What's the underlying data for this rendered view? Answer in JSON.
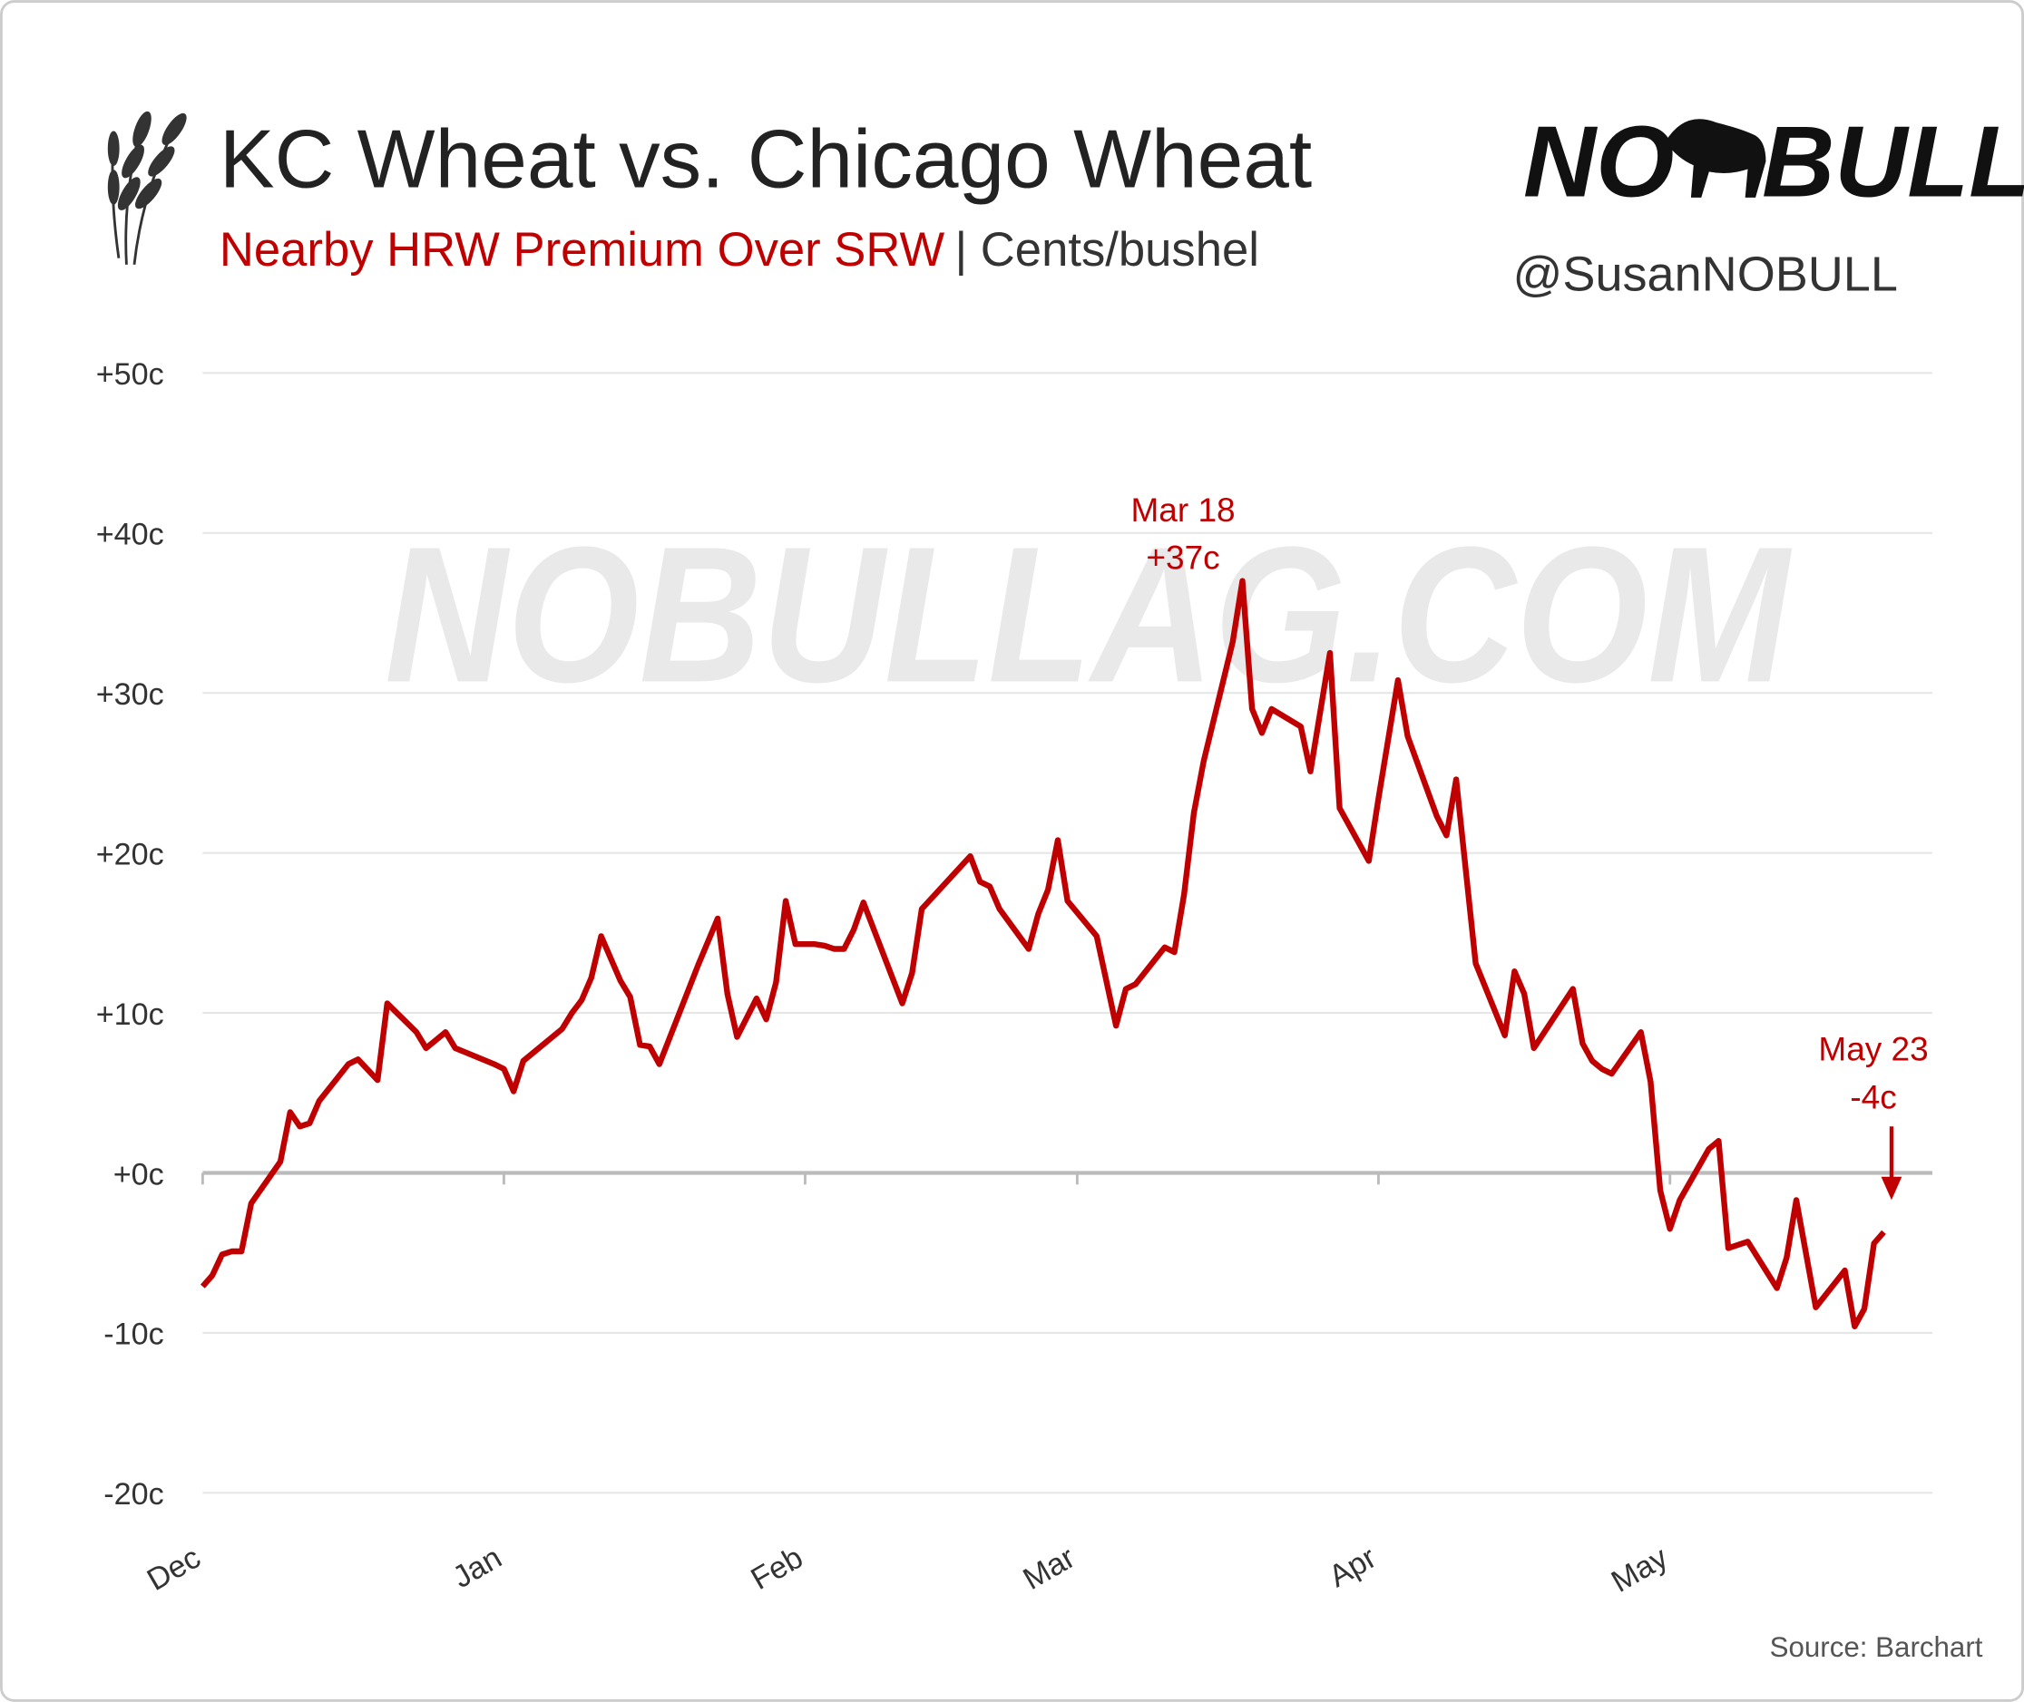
{
  "chart_data": {
    "type": "line",
    "title": "KC Wheat vs. Chicago Wheat",
    "subtitle": [
      "Nearby HRW Premium Over SRW",
      "| Cents/bushel"
    ],
    "logo": [
      "NO",
      "BULL"
    ],
    "handle": "@SusanNOBULL",
    "watermark": "NOBULLAG.COM",
    "source": "Source: Barchart",
    "annotations": [
      {
        "text": [
          "Mar 18",
          "+37c"
        ],
        "x": 107,
        "y": 37
      },
      {
        "text": [
          "May 23",
          "-4c"
        ],
        "x": 173,
        "y": -3.7
      }
    ],
    "color": "#c00000",
    "x": [
      0,
      1,
      2,
      3,
      4,
      5,
      8,
      9,
      10,
      11,
      12,
      15,
      16,
      18,
      19,
      22,
      23,
      25,
      26,
      30,
      31,
      32,
      33,
      37,
      38,
      39,
      40,
      41,
      43,
      44,
      45,
      46,
      47,
      51,
      53,
      54,
      55,
      57,
      58,
      59,
      60,
      61,
      63,
      64,
      65,
      66,
      67,
      68,
      72,
      73,
      74,
      79,
      80,
      81,
      82,
      85,
      86,
      87,
      88,
      89,
      92,
      94,
      95,
      96,
      99,
      100,
      101,
      102,
      103,
      106,
      107,
      108,
      109,
      110,
      113,
      114,
      116,
      117,
      120,
      121,
      123,
      124,
      127,
      128,
      129,
      131,
      134,
      135,
      136,
      137,
      141,
      142,
      143,
      144,
      145,
      148,
      149,
      150,
      151,
      152,
      155,
      156,
      157,
      159,
      162,
      163,
      164,
      166,
      169,
      170,
      171,
      172,
      173
    ],
    "values": [
      -7.1,
      -6.4,
      -5.1,
      -4.9,
      -4.9,
      -1.9,
      0.7,
      3.8,
      2.9,
      3.1,
      4.5,
      6.8,
      7.1,
      5.8,
      10.6,
      8.8,
      7.8,
      8.8,
      7.8,
      6.8,
      6.5,
      5.1,
      7.0,
      9.0,
      10.0,
      10.8,
      12.2,
      14.8,
      12.0,
      11.0,
      8.0,
      7.9,
      6.8,
      13.0,
      15.9,
      11.2,
      8.5,
      10.9,
      9.6,
      11.9,
      17.0,
      14.3,
      14.3,
      14.2,
      14.0,
      14.0,
      15.2,
      16.9,
      10.6,
      12.5,
      16.5,
      19.8,
      18.2,
      17.9,
      16.5,
      14.0,
      16.2,
      17.7,
      20.8,
      17.0,
      14.8,
      9.2,
      11.5,
      11.8,
      14.1,
      13.8,
      17.4,
      22.5,
      25.7,
      33.2,
      37.0,
      29.0,
      27.5,
      29.0,
      27.9,
      25.1,
      32.5,
      22.8,
      19.5,
      23.4,
      30.8,
      27.3,
      22.3,
      21.1,
      24.6,
      13.1,
      8.6,
      12.6,
      11.2,
      7.8,
      11.5,
      8.1,
      7.0,
      6.5,
      6.2,
      8.8,
      5.7,
      -1.1,
      -3.5,
      -1.7,
      1.5,
      2.0,
      -4.7,
      -4.3,
      -7.2,
      -5.3,
      -1.7,
      -8.4,
      -6.1,
      -9.6,
      -8.5,
      -4.4,
      -3.7
    ],
    "xlim": [
      0,
      178
    ],
    "xticks": [
      {
        "value": 0,
        "label": "Dec"
      },
      {
        "value": 31,
        "label": "Jan"
      },
      {
        "value": 62,
        "label": "Feb"
      },
      {
        "value": 90,
        "label": "Mar"
      },
      {
        "value": 121,
        "label": "Apr"
      },
      {
        "value": 151,
        "label": "May"
      }
    ],
    "ylim": [
      -20,
      50
    ],
    "yticks": [
      {
        "value": -20,
        "label": "-20c"
      },
      {
        "value": -10,
        "label": "-10c"
      },
      {
        "value": 0,
        "label": "+0c"
      },
      {
        "value": 10,
        "label": "+10c"
      },
      {
        "value": 20,
        "label": "+20c"
      },
      {
        "value": 30,
        "label": "+30c"
      },
      {
        "value": 40,
        "label": "+40c"
      },
      {
        "value": 50,
        "label": "+50c"
      }
    ],
    "grid": true
  }
}
